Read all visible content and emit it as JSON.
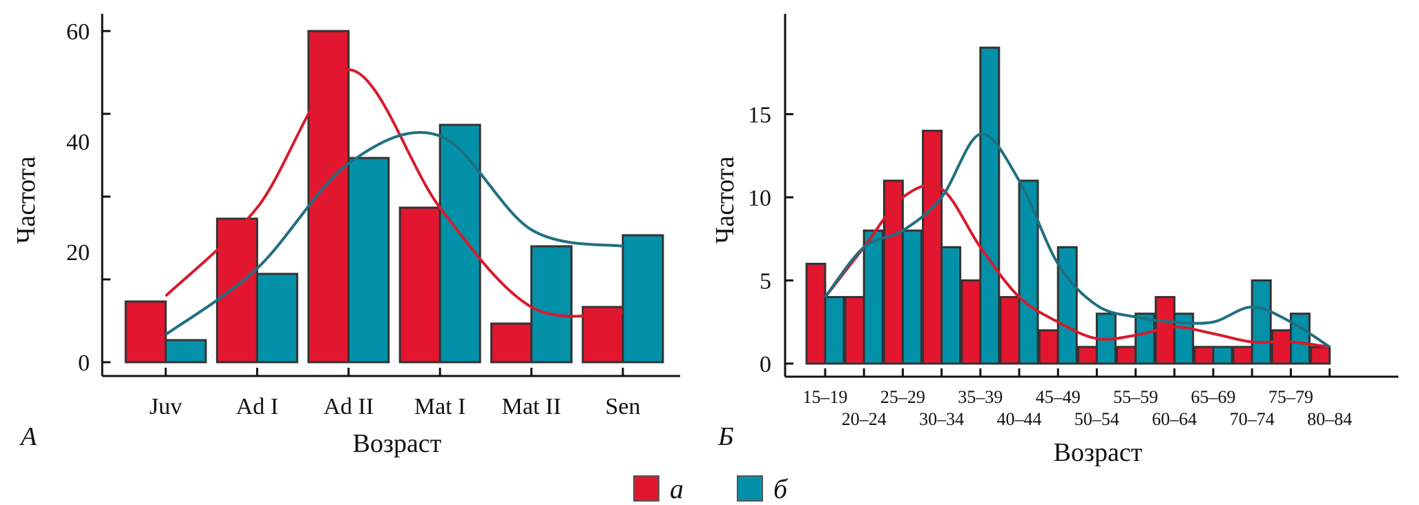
{
  "colors": {
    "a": "#e3162f",
    "b": "#0391aa",
    "curve_a": "#d81a2c",
    "curve_b": "#1f6f80"
  },
  "legend": [
    {
      "key": "a",
      "label": "а"
    },
    {
      "key": "b",
      "label": "б"
    }
  ],
  "chart_data": [
    {
      "panel": "А",
      "type": "bar",
      "title": "",
      "xlabel": "Возраст",
      "ylabel": "Частота",
      "ylim": [
        0,
        60
      ],
      "yticks": [
        0,
        20,
        40,
        60
      ],
      "categories": [
        "Juv",
        "Ad I",
        "Ad II",
        "Mat I",
        "Mat II",
        "Sen"
      ],
      "series": [
        {
          "name": "а",
          "key": "a",
          "values": [
            11,
            26,
            60,
            28,
            7,
            10
          ],
          "curve": [
            12,
            28,
            53,
            28,
            10,
            9
          ]
        },
        {
          "name": "б",
          "key": "b",
          "values": [
            4,
            16,
            37,
            43,
            21,
            23
          ],
          "curve": [
            5,
            17,
            36,
            41,
            24,
            21
          ]
        }
      ],
      "grid": false,
      "legend_position": "bottom"
    },
    {
      "panel": "Б",
      "type": "bar",
      "title": "",
      "xlabel": "Возраст",
      "ylabel": "Частота",
      "ylim": [
        0,
        19
      ],
      "yticks": [
        0,
        5,
        10,
        15
      ],
      "categories": [
        "15–19",
        "20–24",
        "25–29",
        "30–34",
        "35–39",
        "40–44",
        "45–49",
        "50–54",
        "55–59",
        "60–64",
        "65–69",
        "70–74",
        "75–79",
        "80–84"
      ],
      "series": [
        {
          "name": "а",
          "key": "a",
          "values": [
            6,
            4,
            11,
            14,
            5,
            4,
            2,
            1,
            1,
            4,
            1,
            1,
            2,
            1
          ],
          "curve": [
            4,
            7,
            10,
            10.5,
            7,
            4,
            2.5,
            1.5,
            1.7,
            2.2,
            1.8,
            1.3,
            1.3,
            1
          ]
        },
        {
          "name": "б",
          "key": "b",
          "values": [
            4,
            8,
            8,
            7,
            19,
            11,
            7,
            3,
            3,
            3,
            1,
            5,
            3,
            0
          ],
          "curve": [
            4,
            7,
            8,
            10,
            13.8,
            11,
            6,
            3.5,
            2.8,
            2.5,
            2.5,
            3.4,
            2.5,
            1
          ]
        }
      ],
      "grid": false,
      "legend_position": "bottom"
    }
  ]
}
